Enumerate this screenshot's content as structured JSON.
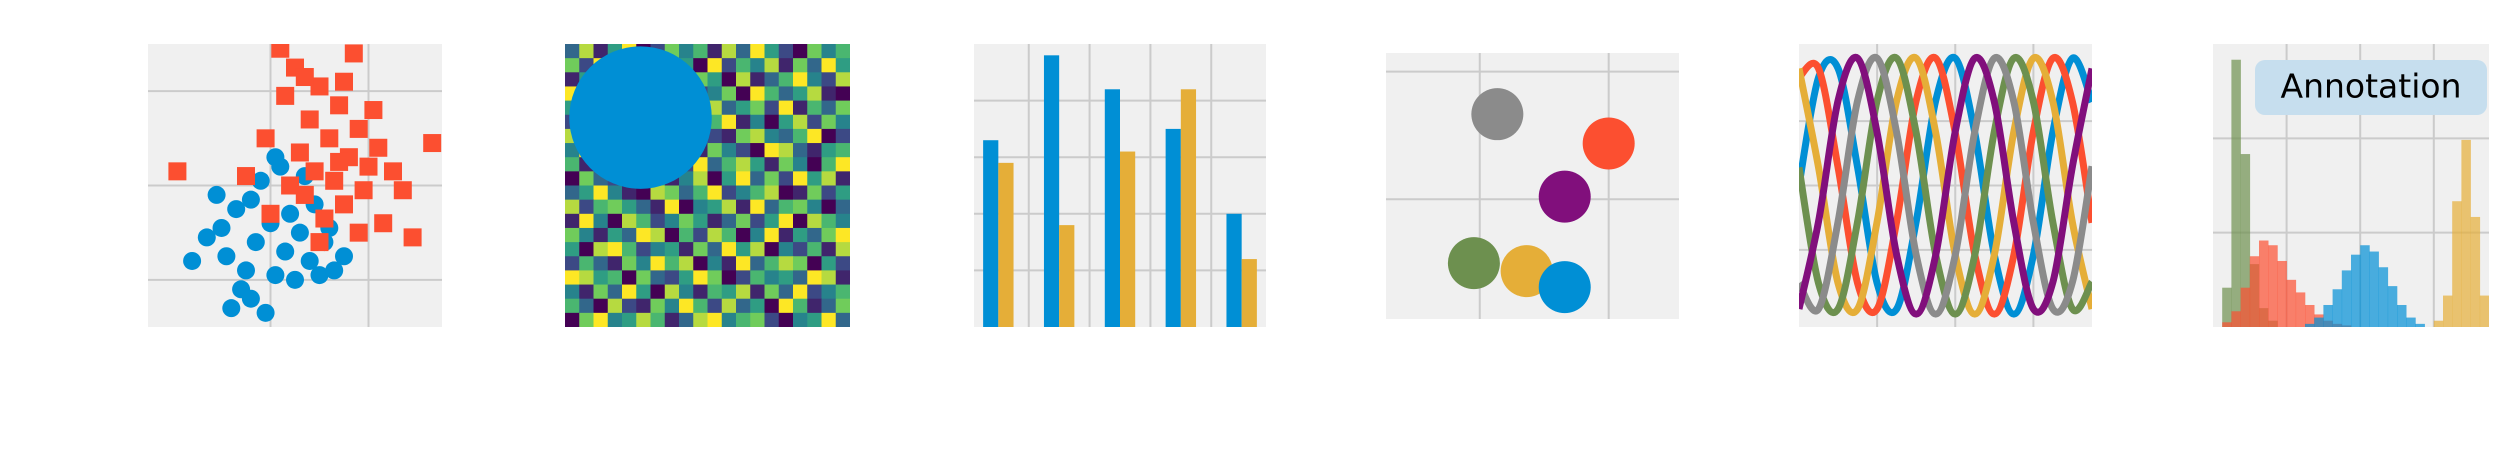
{
  "chart_data": [
    {
      "type": "scatter",
      "xlim": [
        -3,
        3
      ],
      "ylim": [
        -3,
        3
      ],
      "xticks": [
        -0.5,
        1.5
      ],
      "yticks": [
        -2,
        0,
        2
      ],
      "grid": true,
      "series": [
        {
          "color": "#008fd5",
          "marker": "o",
          "x": [
            -2.1,
            -1.8,
            -1.5,
            -1.4,
            -1.2,
            -1.1,
            -1.0,
            -0.9,
            -0.8,
            -0.7,
            -0.6,
            -0.5,
            -0.4,
            -0.3,
            -0.2,
            -0.1,
            0.0,
            0.1,
            0.2,
            0.3,
            0.4,
            0.5,
            0.6,
            0.8,
            1.0,
            -1.3,
            -0.9,
            -1.6,
            -0.4,
            0.7
          ],
          "values": [
            -1.6,
            -1.1,
            -0.9,
            -1.5,
            -0.5,
            -2.2,
            -1.8,
            -0.3,
            -1.2,
            0.1,
            -2.7,
            -0.8,
            -1.9,
            0.4,
            -1.4,
            -0.6,
            -2.0,
            -1.0,
            0.2,
            -1.6,
            -0.4,
            -1.9,
            -1.2,
            -1.8,
            -1.5,
            -2.6,
            -2.4,
            -0.2,
            0.6,
            -0.9
          ]
        },
        {
          "color": "#fc4f30",
          "marker": "s",
          "x": [
            -2.4,
            -1.0,
            -0.6,
            -0.3,
            -0.2,
            0.0,
            0.1,
            0.2,
            0.3,
            0.4,
            0.5,
            0.6,
            0.7,
            0.8,
            0.9,
            1.0,
            1.1,
            1.2,
            1.3,
            1.4,
            1.5,
            1.6,
            1.8,
            2.0,
            2.2,
            2.4,
            2.8,
            -0.5,
            0.2,
            1.0,
            0.5,
            1.7,
            -0.1,
            0.9,
            1.3
          ],
          "values": [
            0.3,
            0.2,
            1.0,
            2.9,
            1.9,
            2.5,
            0.7,
            -0.2,
            1.4,
            0.3,
            2.1,
            -0.7,
            1.0,
            0.1,
            1.7,
            -0.4,
            0.6,
            2.8,
            1.2,
            -0.1,
            0.4,
            1.6,
            -0.8,
            0.3,
            -0.1,
            -1.1,
            0.9,
            -0.6,
            2.3,
            2.2,
            -1.2,
            0.8,
            0.0,
            0.5,
            -1.0
          ]
        }
      ]
    },
    {
      "type": "heatmap",
      "xlim": [
        0,
        20
      ],
      "ylim": [
        20,
        0
      ],
      "colormap": "viridis",
      "clim": [
        0,
        9
      ],
      "circle": {
        "center": [
          5.3,
          5.2
        ],
        "radius": 5,
        "color": "#008fd5"
      },
      "values": [
        [
          3,
          8,
          1,
          5,
          9,
          0,
          2,
          7,
          4,
          6,
          1,
          8,
          3,
          9,
          5,
          2,
          0,
          7,
          4,
          6
        ],
        [
          7,
          2,
          9,
          4,
          1,
          6,
          8,
          3,
          5,
          0,
          9,
          2,
          6,
          4,
          8,
          1,
          7,
          3,
          9,
          5
        ],
        [
          1,
          5,
          6,
          0,
          8,
          3,
          4,
          9,
          2,
          7,
          5,
          0,
          8,
          1,
          3,
          6,
          9,
          4,
          2,
          8
        ],
        [
          9,
          4,
          2,
          7,
          3,
          5,
          1,
          6,
          8,
          2,
          4,
          7,
          0,
          9,
          6,
          3,
          5,
          8,
          1,
          0
        ],
        [
          5,
          0,
          8,
          3,
          6,
          9,
          7,
          2,
          1,
          4,
          8,
          3,
          5,
          7,
          2,
          9,
          1,
          6,
          3,
          7
        ],
        [
          2,
          6,
          4,
          9,
          0,
          1,
          5,
          8,
          7,
          3,
          6,
          9,
          1,
          4,
          0,
          5,
          8,
          2,
          7,
          4
        ],
        [
          8,
          3,
          7,
          1,
          5,
          4,
          9,
          0,
          6,
          5,
          2,
          1,
          7,
          8,
          4,
          3,
          6,
          9,
          0,
          2
        ],
        [
          4,
          9,
          0,
          6,
          2,
          8,
          3,
          5,
          9,
          1,
          7,
          4,
          2,
          0,
          9,
          8,
          3,
          1,
          5,
          6
        ],
        [
          6,
          1,
          5,
          8,
          4,
          7,
          0,
          3,
          2,
          9,
          3,
          6,
          8,
          5,
          1,
          7,
          4,
          0,
          6,
          9
        ],
        [
          0,
          7,
          3,
          2,
          9,
          5,
          6,
          1,
          4,
          8,
          0,
          5,
          9,
          3,
          7,
          2,
          9,
          5,
          8,
          1
        ],
        [
          3,
          5,
          9,
          4,
          1,
          0,
          8,
          7,
          3,
          6,
          9,
          2,
          4,
          6,
          8,
          0,
          1,
          7,
          2,
          5
        ],
        [
          8,
          2,
          6,
          7,
          5,
          3,
          1,
          9,
          0,
          4,
          5,
          8,
          1,
          9,
          3,
          6,
          7,
          4,
          0,
          3
        ],
        [
          1,
          9,
          4,
          0,
          8,
          6,
          2,
          4,
          7,
          5,
          1,
          3,
          7,
          2,
          5,
          9,
          0,
          8,
          6,
          4
        ],
        [
          7,
          4,
          1,
          5,
          3,
          9,
          8,
          0,
          6,
          2,
          8,
          6,
          0,
          4,
          9,
          1,
          5,
          3,
          7,
          9
        ],
        [
          5,
          0,
          8,
          9,
          6,
          2,
          4,
          5,
          1,
          7,
          3,
          9,
          5,
          8,
          0,
          4,
          2,
          6,
          1,
          8
        ],
        [
          2,
          6,
          3,
          1,
          7,
          4,
          9,
          6,
          8,
          0,
          4,
          1,
          9,
          3,
          6,
          8,
          7,
          0,
          5,
          2
        ],
        [
          9,
          8,
          5,
          6,
          0,
          7,
          3,
          2,
          5,
          9,
          7,
          0,
          2,
          6,
          4,
          5,
          3,
          9,
          8,
          1
        ],
        [
          4,
          1,
          7,
          3,
          9,
          5,
          0,
          8,
          4,
          1,
          6,
          5,
          8,
          1,
          7,
          3,
          9,
          2,
          4,
          6
        ],
        [
          6,
          3,
          0,
          8,
          2,
          1,
          7,
          4,
          9,
          6,
          2,
          8,
          3,
          5,
          0,
          9,
          6,
          1,
          3,
          7
        ],
        [
          0,
          7,
          9,
          4,
          5,
          8,
          6,
          1,
          3,
          8,
          9,
          4,
          6,
          7,
          2,
          0,
          4,
          5,
          9,
          3
        ]
      ]
    },
    {
      "type": "bar",
      "xlim": [
        -0.4,
        4.4
      ],
      "ylim": [
        0,
        5
      ],
      "xticks": [
        0.5,
        1.5,
        2.5,
        3.5
      ],
      "yticks": [
        1,
        2,
        3,
        4
      ],
      "grid": true,
      "x": [
        0,
        1,
        2,
        3,
        4
      ],
      "series": [
        {
          "color": "#008fd5",
          "values": [
            3.3,
            4.8,
            4.2,
            3.5,
            2.0
          ]
        },
        {
          "color": "#e5ae38",
          "values": [
            2.9,
            1.8,
            3.1,
            4.2,
            1.2
          ]
        }
      ]
    },
    {
      "type": "scatter",
      "xlim": [
        0,
        10
      ],
      "ylim": [
        0,
        10
      ],
      "xticks": [
        3.2,
        7.6
      ],
      "yticks": [
        4.5,
        9.3
      ],
      "grid": true,
      "series": [
        {
          "color": "#8b8b8b",
          "marker": "o",
          "x": [
            3.8
          ],
          "values": [
            7.7
          ]
        },
        {
          "color": "#fc4f30",
          "marker": "o",
          "x": [
            7.6
          ],
          "values": [
            6.6
          ]
        },
        {
          "color": "#810f7c",
          "marker": "o",
          "x": [
            6.1
          ],
          "values": [
            4.6
          ]
        },
        {
          "color": "#6d904f",
          "marker": "o",
          "x": [
            3.0
          ],
          "values": [
            2.1
          ]
        },
        {
          "color": "#e5ae38",
          "marker": "o",
          "x": [
            4.8
          ],
          "values": [
            1.8
          ]
        },
        {
          "color": "#008fd5",
          "marker": "o",
          "x": [
            6.1
          ],
          "values": [
            1.2
          ]
        }
      ]
    },
    {
      "type": "line",
      "xlim": [
        0,
        15
      ],
      "ylim": [
        -1.1,
        1.1
      ],
      "xticks": [
        4,
        8,
        12
      ],
      "yticks": [
        -0.5,
        0,
        0.5
      ],
      "grid": true,
      "x": [
        0,
        1,
        2,
        3,
        4,
        5,
        6,
        7,
        8,
        9,
        10,
        11,
        12,
        13,
        14,
        15
      ],
      "series": [
        {
          "color": "#008fd5",
          "values": [
            0,
            0.84,
            0.91,
            0.14,
            -0.76,
            -0.96,
            -0.28,
            0.66,
            0.99,
            0.41,
            -0.54,
            -1.0,
            -0.54,
            0.42,
            0.99,
            0.65
          ]
        },
        {
          "color": "#fc4f30",
          "values": [
            0.84,
            0.91,
            0.14,
            -0.76,
            -0.96,
            -0.28,
            0.66,
            0.99,
            0.41,
            -0.54,
            -1.0,
            -0.54,
            0.42,
            0.99,
            0.65,
            -0.29
          ]
        },
        {
          "color": "#e5ae38",
          "values": [
            0.91,
            0.14,
            -0.76,
            -0.96,
            -0.28,
            0.66,
            0.99,
            0.41,
            -0.54,
            -1.0,
            -0.54,
            0.42,
            0.99,
            0.65,
            -0.29,
            -0.96
          ]
        },
        {
          "color": "#6d904f",
          "values": [
            0.14,
            -0.76,
            -0.96,
            -0.28,
            0.66,
            0.99,
            0.41,
            -0.54,
            -1.0,
            -0.54,
            0.42,
            0.99,
            0.65,
            -0.29,
            -0.96,
            -0.75
          ]
        },
        {
          "color": "#8b8b8b",
          "values": [
            -0.76,
            -0.96,
            -0.28,
            0.66,
            0.99,
            0.41,
            -0.54,
            -1.0,
            -0.54,
            0.42,
            0.99,
            0.65,
            -0.29,
            -0.96,
            -0.75,
            0.15
          ]
        },
        {
          "color": "#810f7c",
          "values": [
            -0.96,
            -0.28,
            0.66,
            0.99,
            0.41,
            -0.54,
            -1.0,
            -0.54,
            0.42,
            0.99,
            0.65,
            -0.29,
            -0.96,
            -0.75,
            0.15,
            0.91
          ]
        }
      ]
    },
    {
      "type": "histogram",
      "xlim": [
        0,
        15
      ],
      "ylim": [
        0,
        180
      ],
      "xticks": [
        4,
        8,
        12
      ],
      "yticks": [
        60,
        120
      ],
      "grid": true,
      "annotation": "Annotation",
      "bins": [
        0,
        0.5,
        1,
        1.5,
        2,
        2.5,
        3,
        3.5,
        4,
        4.5,
        5,
        5.5,
        6,
        6.5,
        7,
        7.5,
        8,
        8.5,
        9,
        9.5,
        10,
        10.5,
        11,
        11.5,
        12,
        12.5,
        13,
        13.5,
        14,
        14.5,
        15
      ],
      "series": [
        {
          "color": "#6d904f",
          "values": [
            0,
            25,
            170,
            110,
            40,
            12,
            4,
            0,
            0,
            0,
            0,
            0,
            0,
            0,
            0,
            0,
            0,
            0,
            0,
            0,
            0,
            0,
            0,
            0,
            0,
            0,
            0,
            0,
            0,
            0
          ]
        },
        {
          "color": "#fc4f30",
          "values": [
            0,
            3,
            10,
            25,
            45,
            55,
            52,
            42,
            30,
            22,
            14,
            8,
            4,
            2,
            1,
            0,
            0,
            0,
            0,
            0,
            0,
            0,
            0,
            0,
            0,
            0,
            0,
            0,
            0,
            0
          ]
        },
        {
          "color": "#008fd5",
          "values": [
            0,
            0,
            0,
            0,
            0,
            0,
            0,
            0,
            0,
            0,
            2,
            6,
            14,
            24,
            36,
            46,
            52,
            48,
            38,
            26,
            14,
            6,
            2,
            0,
            0,
            0,
            0,
            0,
            0,
            0
          ]
        },
        {
          "color": "#e5ae38",
          "values": [
            0,
            0,
            0,
            0,
            0,
            0,
            0,
            0,
            0,
            0,
            0,
            0,
            0,
            0,
            0,
            0,
            0,
            0,
            0,
            0,
            0,
            0,
            0,
            0,
            4,
            20,
            80,
            119,
            70,
            20
          ]
        }
      ]
    }
  ]
}
